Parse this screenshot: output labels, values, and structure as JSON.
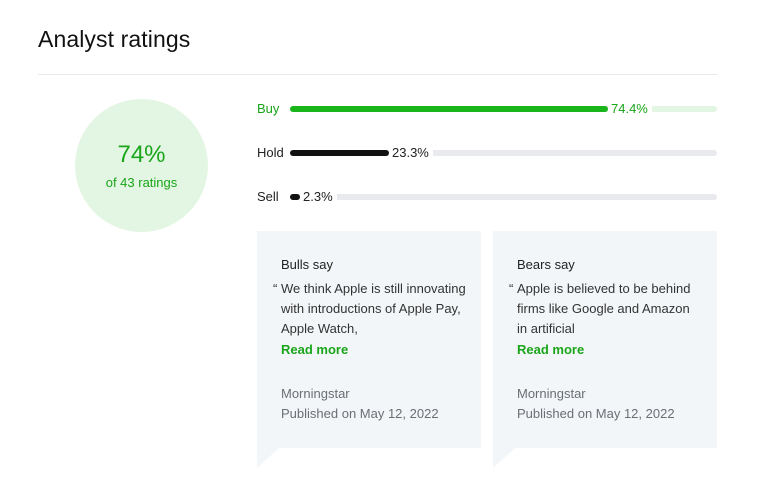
{
  "header": {
    "title": "Analyst ratings"
  },
  "summary": {
    "percent": "74%",
    "caption": "of 43 ratings"
  },
  "ratings": [
    {
      "label": "Buy",
      "value": 74.4,
      "display": "74.4%"
    },
    {
      "label": "Hold",
      "value": 23.3,
      "display": "23.3%"
    },
    {
      "label": "Sell",
      "value": 2.3,
      "display": "2.3%"
    }
  ],
  "cards": [
    {
      "heading": "Bulls say",
      "quote_mark": "“",
      "quote": "We think Apple is still innovating with introductions of Apple Pay, Apple Watch,",
      "read_more": "Read more",
      "source": "Morningstar",
      "published": "Published on May 12, 2022"
    },
    {
      "heading": "Bears say",
      "quote_mark": "“",
      "quote": "Apple is believed to be behind firms like Google and Amazon in artificial",
      "read_more": "Read more",
      "source": "Morningstar",
      "published": "Published on May 12, 2022"
    }
  ],
  "colors": {
    "accent": "#1aa51a",
    "buy_bar": "#1ab51a",
    "hold_bar": "#111111",
    "track": "#e8eaed",
    "card_bg": "#f3f6f8"
  }
}
